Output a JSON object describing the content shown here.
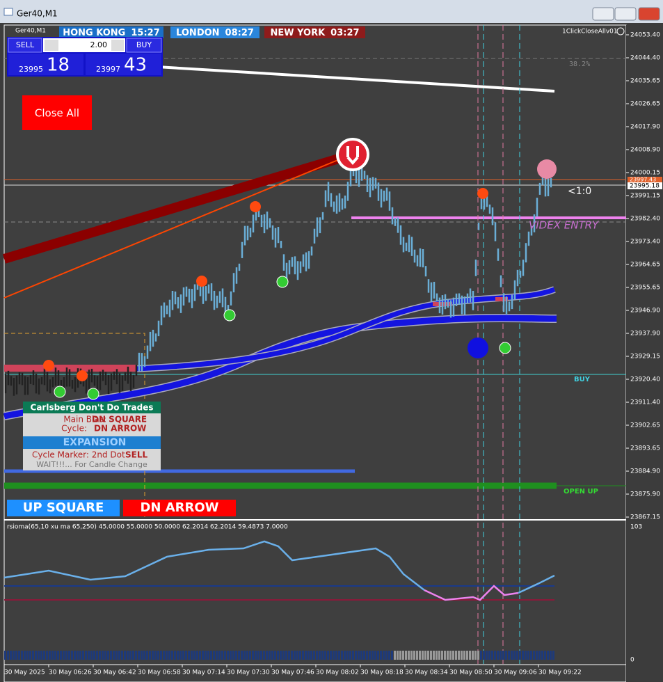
{
  "window": {
    "title": "Ger40,M1"
  },
  "chart": {
    "symbol": "Ger40,M1",
    "sessions": [
      {
        "name": "HONG KONG",
        "time": "15:27"
      },
      {
        "name": "LONDON",
        "time": "08:27"
      },
      {
        "name": "NEW YORK",
        "time": "03:27"
      }
    ],
    "trade_panel": {
      "sell": "SELL",
      "buy": "BUY",
      "lots": "2.00",
      "bid_prefix": "23995",
      "bid_big": "18",
      "ask_prefix": "23997",
      "ask_big": "43"
    },
    "close_all": "Close All",
    "expert_label": "1ClickCloseAllv01",
    "fib_label": "38.2%",
    "ratio_label": "<1:0",
    "entry_label": "VIDEX ENTRY",
    "buy_label": "BUY",
    "open_up_label": "OPEN UP",
    "price_axis": [
      "24053.40",
      "24044.40",
      "24035.65",
      "24026.65",
      "24017.90",
      "24008.90",
      "24000.15",
      "23991.15",
      "23982.40",
      "23973.40",
      "23964.65",
      "23955.65",
      "23946.90",
      "23937.90",
      "23929.15",
      "23920.40",
      "23911.40",
      "23902.65",
      "23893.65",
      "23884.90",
      "23875.90",
      "23867.15"
    ],
    "current_prices": [
      "23997.43",
      "23995.18"
    ],
    "info_panel": {
      "title": "Carlsberg Don't Do Trades",
      "bias_label": "Main Bias:",
      "bias_value": "DN SQUARE",
      "cycle_label": "Cycle:",
      "cycle_value": "DN ARROW",
      "state": "EXPANSION",
      "marker_label": "Cycle Marker: 2nd Dot",
      "marker_value": "SELL",
      "note": "WAIT!!!... For Candle Change"
    },
    "badges": [
      "UP SQUARE",
      "DN ARROW"
    ]
  },
  "indicator": {
    "title": "rsioma(65,10 xu ma 65,250) 45.0000 55.0000 50.0000 62.2014 62.2014 59.4873 7.0000",
    "scale_top": "103",
    "scale_bottom": "0"
  },
  "time_axis": [
    "30 May 2025",
    "30 May 06:26",
    "30 May 06:42",
    "30 May 06:58",
    "30 May 07:14",
    "30 May 07:30",
    "30 May 07:46",
    "30 May 08:02",
    "30 May 08:18",
    "30 May 08:34",
    "30 May 08:50",
    "30 May 09:06",
    "30 May 09:22"
  ]
}
